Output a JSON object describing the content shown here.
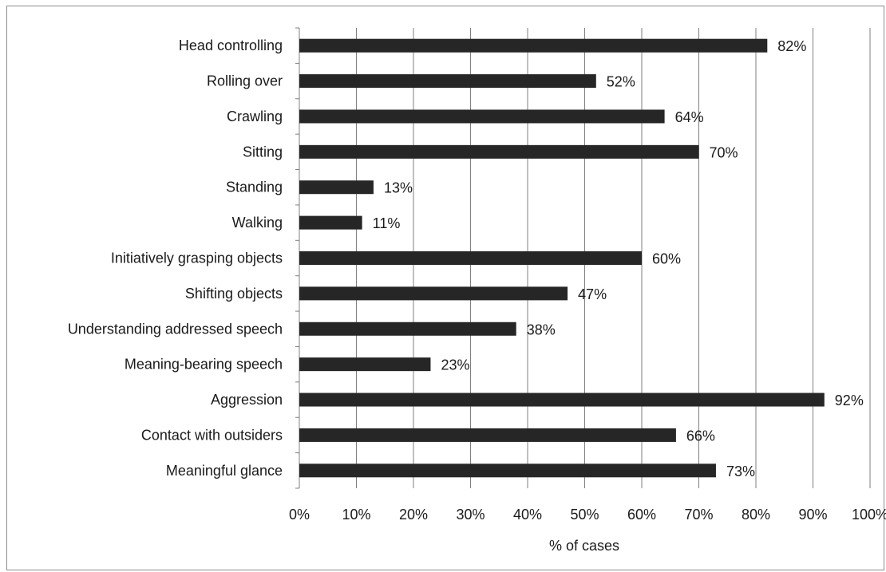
{
  "chart_data": {
    "type": "bar",
    "orientation": "horizontal",
    "categories": [
      "Head controlling",
      "Rolling over",
      "Crawling",
      "Sitting",
      "Standing",
      "Walking",
      "Initiatively grasping objects",
      "Shifting objects",
      "Understanding addressed speech",
      "Meaning-bearing speech",
      "Aggression",
      "Contact with outsiders",
      "Meaningful glance"
    ],
    "values": [
      82,
      52,
      64,
      70,
      13,
      11,
      60,
      47,
      38,
      23,
      92,
      66,
      73
    ],
    "data_labels": [
      "82%",
      "52%",
      "64%",
      "70%",
      "13%",
      "11%",
      "60%",
      "47%",
      "38%",
      "23%",
      "92%",
      "66%",
      "73%"
    ],
    "xlabel": "% of cases",
    "ylabel": "",
    "xlim": [
      0,
      100
    ],
    "x_ticks": [
      "0%",
      "10%",
      "20%",
      "30%",
      "40%",
      "50%",
      "60%",
      "70%",
      "80%",
      "90%",
      "100%"
    ],
    "grid": "vertical",
    "legend": "none",
    "bar_color": "#262626",
    "grid_color": "#7f7f7f"
  }
}
